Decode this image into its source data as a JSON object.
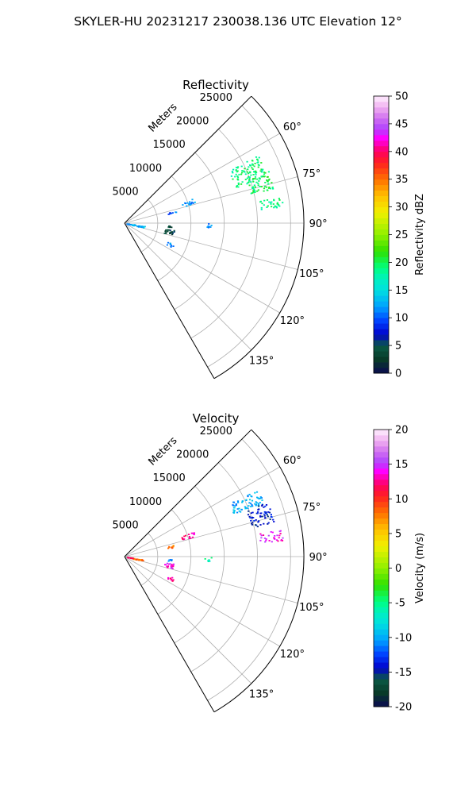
{
  "figure": {
    "suptitle": "SKYLER-HU  20231217  230038.136 UTC Elevation 12°"
  },
  "chart_data": [
    {
      "type": "polar-sector",
      "title": "Reflectivity",
      "radial_axis_label": "Meters",
      "radial_ticks": [
        5000,
        10000,
        15000,
        20000,
        25000
      ],
      "radial_tick_labels": [
        "5000",
        "10000",
        "15000",
        "20000",
        "25000"
      ],
      "rlim": [
        0,
        27000
      ],
      "angle_range_deg": [
        45,
        150
      ],
      "angle_tick_labels": [
        "60°",
        "75°",
        "90°",
        "105°",
        "120°",
        "135°"
      ],
      "angle_grid_deg": [
        60,
        75,
        90,
        105,
        120,
        135
      ],
      "grid": true,
      "colorbar": {
        "label": "Reflectivity dBZ",
        "range": [
          0,
          50
        ],
        "ticks": [
          0,
          5,
          10,
          15,
          20,
          25,
          30,
          35,
          40,
          45,
          50
        ]
      },
      "echoes": [
        {
          "az_range": [
            63,
            72
          ],
          "r_range": [
            17500,
            22500
          ],
          "value": 19
        },
        {
          "az_range": [
            70,
            77
          ],
          "r_range": [
            19500,
            23000
          ],
          "value": 20
        },
        {
          "az_range": [
            80,
            84
          ],
          "r_range": [
            20500,
            24000
          ],
          "value": 19
        },
        {
          "az_range": [
            70,
            74
          ],
          "r_range": [
            9000,
            11000
          ],
          "value": 12
        },
        {
          "az_range": [
            76,
            78
          ],
          "r_range": [
            6500,
            8000
          ],
          "value": 10
        },
        {
          "az_range": [
            98,
            103
          ],
          "r_range": [
            1000,
            3000
          ],
          "value": 13
        },
        {
          "az_range": [
            96,
            101
          ],
          "r_range": [
            300,
            1500
          ],
          "value": 12
        },
        {
          "az_range": [
            98,
            104
          ],
          "r_range": [
            6000,
            7500
          ],
          "value": 4
        },
        {
          "az_range": [
            93,
            95
          ],
          "r_range": [
            6500,
            7200
          ],
          "value": 3
        },
        {
          "az_range": [
            113,
            117
          ],
          "r_range": [
            7000,
            8000
          ],
          "value": 12
        },
        {
          "az_range": [
            90,
            93
          ],
          "r_range": [
            12000,
            13000
          ],
          "value": 12
        }
      ]
    },
    {
      "type": "polar-sector",
      "title": "Velocity",
      "radial_axis_label": "Meters",
      "radial_ticks": [
        5000,
        10000,
        15000,
        20000,
        25000
      ],
      "radial_tick_labels": [
        "5000",
        "10000",
        "15000",
        "20000",
        "25000"
      ],
      "rlim": [
        0,
        27000
      ],
      "angle_range_deg": [
        45,
        150
      ],
      "angle_tick_labels": [
        "60°",
        "75°",
        "90°",
        "105°",
        "120°",
        "135°"
      ],
      "angle_grid_deg": [
        60,
        75,
        90,
        105,
        120,
        135
      ],
      "grid": true,
      "colorbar": {
        "label": "Velocity (m/s)",
        "range": [
          -20,
          20
        ],
        "ticks": [
          -20,
          -15,
          -10,
          -5,
          0,
          5,
          10,
          15,
          20
        ]
      },
      "echoes": [
        {
          "az_range": [
            63,
            69
          ],
          "r_range": [
            17500,
            22500
          ],
          "value": -10
        },
        {
          "az_range": [
            69,
            77
          ],
          "r_range": [
            19500,
            23000
          ],
          "value": -14
        },
        {
          "az_range": [
            80,
            84
          ],
          "r_range": [
            20500,
            24000
          ],
          "value": 14
        },
        {
          "az_range": [
            70,
            74
          ],
          "r_range": [
            9000,
            11000
          ],
          "value": 13
        },
        {
          "az_range": [
            76,
            79
          ],
          "r_range": [
            6500,
            8000
          ],
          "value": 8
        },
        {
          "az_range": [
            98,
            103
          ],
          "r_range": [
            1000,
            3000
          ],
          "value": 8
        },
        {
          "az_range": [
            96,
            101
          ],
          "r_range": [
            300,
            1500
          ],
          "value": 12
        },
        {
          "az_range": [
            98,
            104
          ],
          "r_range": [
            6000,
            7500
          ],
          "value": 14
        },
        {
          "az_range": [
            93,
            95
          ],
          "r_range": [
            6500,
            7200
          ],
          "value": -10
        },
        {
          "az_range": [
            113,
            117
          ],
          "r_range": [
            7000,
            8000
          ],
          "value": 12
        },
        {
          "az_range": [
            90,
            93
          ],
          "r_range": [
            12000,
            13000
          ],
          "value": -6
        }
      ]
    }
  ]
}
